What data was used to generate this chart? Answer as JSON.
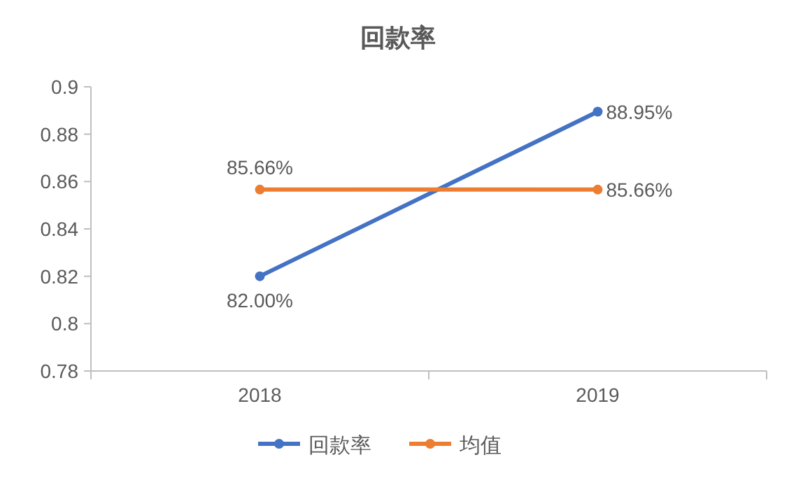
{
  "chart_data": {
    "type": "line",
    "title": "回款率",
    "categories": [
      "2018",
      "2019"
    ],
    "series": [
      {
        "name": "回款率",
        "color": "#4472c4",
        "values": [
          0.82,
          0.8895
        ],
        "value_labels": [
          "82.00%",
          "88.95%"
        ]
      },
      {
        "name": "均值",
        "color": "#ed7d31",
        "values": [
          0.8566,
          0.8566
        ],
        "value_labels": [
          "85.66%",
          "85.66%"
        ]
      }
    ],
    "ylim": [
      0.78,
      0.9
    ],
    "yticks": [
      0.78,
      0.8,
      0.82,
      0.84,
      0.86,
      0.88,
      0.9
    ],
    "marker": "circle",
    "legend": "bottom"
  }
}
